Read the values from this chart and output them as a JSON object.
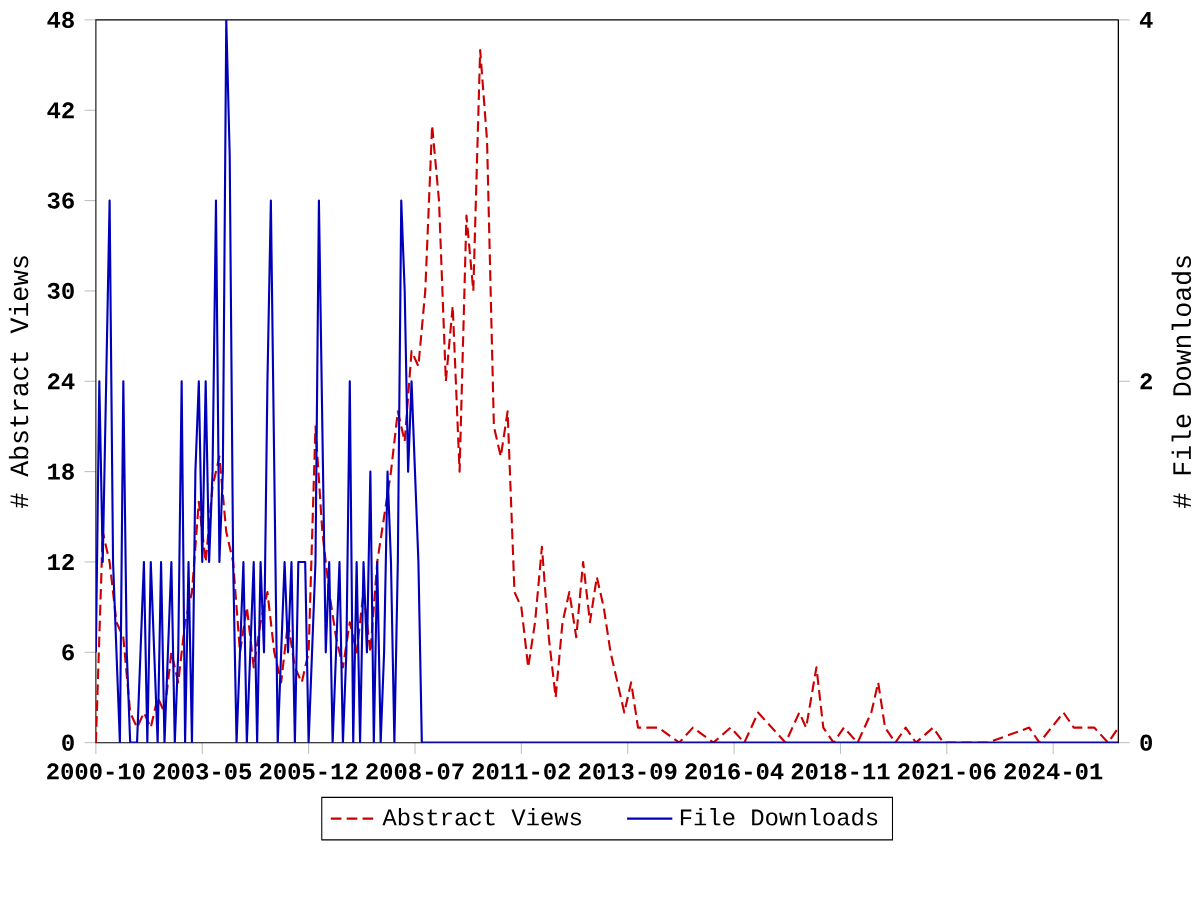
{
  "chart_data": {
    "type": "line",
    "ylabel": "# Abstract Views",
    "y2label": "# File Downloads",
    "xlim": [
      "2000-10",
      "2025-08"
    ],
    "xticks": [
      "2000-10",
      "2003-05",
      "2005-12",
      "2008-07",
      "2011-02",
      "2013-09",
      "2016-04",
      "2018-11",
      "2021-06",
      "2024-01"
    ],
    "ylim": [
      0,
      48
    ],
    "yticks": [
      0,
      6,
      12,
      18,
      24,
      30,
      36,
      42,
      48
    ],
    "y2lim": [
      0,
      4
    ],
    "y2ticks": [
      0,
      2,
      4
    ],
    "legend": "bottom",
    "series": [
      {
        "name": "Abstract Views",
        "color": "#cc0000",
        "line_style": "dashed",
        "axis": "y",
        "x": [
          "2000-10",
          "2000-12",
          "2001-02",
          "2001-04",
          "2001-06",
          "2001-08",
          "2001-10",
          "2001-12",
          "2002-02",
          "2002-04",
          "2002-06",
          "2002-08",
          "2002-10",
          "2002-12",
          "2003-02",
          "2003-04",
          "2003-06",
          "2003-08",
          "2003-10",
          "2003-12",
          "2004-02",
          "2004-04",
          "2004-06",
          "2004-08",
          "2004-10",
          "2004-12",
          "2005-02",
          "2005-04",
          "2005-06",
          "2005-08",
          "2005-10",
          "2005-12",
          "2006-02",
          "2006-04",
          "2006-06",
          "2006-08",
          "2006-10",
          "2006-12",
          "2007-02",
          "2007-04",
          "2007-06",
          "2007-08",
          "2007-10",
          "2007-12",
          "2008-02",
          "2008-04",
          "2008-06",
          "2008-08",
          "2008-10",
          "2008-12",
          "2009-02",
          "2009-04",
          "2009-06",
          "2009-08",
          "2009-10",
          "2009-12",
          "2010-02",
          "2010-04",
          "2010-06",
          "2010-08",
          "2010-10",
          "2010-12",
          "2011-02",
          "2011-04",
          "2011-06",
          "2011-08",
          "2011-10",
          "2011-12",
          "2012-02",
          "2012-04",
          "2012-06",
          "2012-08",
          "2012-10",
          "2012-12",
          "2013-02",
          "2013-04",
          "2013-06",
          "2013-08",
          "2013-10",
          "2013-12",
          "2014-06",
          "2014-12",
          "2015-04",
          "2015-10",
          "2016-03",
          "2016-07",
          "2016-11",
          "2017-03",
          "2017-07",
          "2017-11",
          "2018-01",
          "2018-04",
          "2018-06",
          "2018-09",
          "2018-12",
          "2019-04",
          "2019-08",
          "2019-10",
          "2019-12",
          "2020-03",
          "2020-06",
          "2020-09",
          "2021-02",
          "2021-05",
          "2022-06",
          "2023-06",
          "2023-09",
          "2024-04",
          "2024-07",
          "2025-01",
          "2025-05",
          "2025-08"
        ],
        "values": [
          0,
          14,
          12,
          8,
          7,
          2,
          1,
          2,
          1,
          3,
          2,
          6,
          4,
          8,
          10,
          16,
          12,
          17,
          19,
          14,
          12,
          6,
          9,
          5,
          8,
          10,
          6,
          4,
          8,
          5,
          4,
          6,
          21,
          14,
          10,
          7,
          5,
          8,
          6,
          10,
          6,
          12,
          15,
          18,
          22,
          20,
          26,
          25,
          30,
          41,
          36,
          24,
          29,
          18,
          35,
          30,
          46,
          40,
          21,
          19,
          22,
          10,
          9,
          5,
          8,
          13,
          7,
          3,
          8,
          10,
          7,
          12,
          8,
          11,
          9,
          6,
          4,
          2,
          4,
          1,
          1,
          0,
          1,
          0,
          1,
          0,
          2,
          1,
          0,
          2,
          1,
          5,
          1,
          0,
          1,
          0,
          2,
          4,
          1,
          0,
          1,
          0,
          1,
          0,
          0,
          1,
          0,
          2,
          1,
          1,
          0,
          1
        ]
      },
      {
        "name": "File Downloads",
        "color": "#0000bb",
        "line_style": "solid",
        "axis": "y2",
        "x": [
          "2000-10",
          "2000-11",
          "2000-12",
          "2001-01",
          "2001-02",
          "2001-03",
          "2001-04",
          "2001-05",
          "2001-06",
          "2001-07",
          "2001-08",
          "2001-09",
          "2001-10",
          "2001-11",
          "2001-12",
          "2002-01",
          "2002-02",
          "2002-03",
          "2002-04",
          "2002-05",
          "2002-06",
          "2002-07",
          "2002-08",
          "2002-09",
          "2002-10",
          "2002-11",
          "2002-12",
          "2003-01",
          "2003-02",
          "2003-03",
          "2003-04",
          "2003-05",
          "2003-06",
          "2003-07",
          "2003-08",
          "2003-09",
          "2003-10",
          "2003-11",
          "2003-12",
          "2004-01",
          "2004-02",
          "2004-03",
          "2004-04",
          "2004-05",
          "2004-06",
          "2004-07",
          "2004-08",
          "2004-09",
          "2004-10",
          "2004-11",
          "2004-12",
          "2005-01",
          "2005-02",
          "2005-03",
          "2005-04",
          "2005-05",
          "2005-06",
          "2005-07",
          "2005-08",
          "2005-09",
          "2005-10",
          "2005-11",
          "2005-12",
          "2006-01",
          "2006-02",
          "2006-03",
          "2006-04",
          "2006-05",
          "2006-06",
          "2006-07",
          "2006-08",
          "2006-09",
          "2006-10",
          "2006-11",
          "2006-12",
          "2007-01",
          "2007-02",
          "2007-03",
          "2007-04",
          "2007-05",
          "2007-06",
          "2007-07",
          "2007-08",
          "2007-09",
          "2007-10",
          "2007-11",
          "2007-12",
          "2008-01",
          "2008-02",
          "2008-03",
          "2008-04",
          "2008-05",
          "2008-06",
          "2008-07",
          "2008-08",
          "2008-09",
          "2008-10",
          "2025-08"
        ],
        "values": [
          0.5,
          2,
          1,
          2,
          3,
          1,
          0.5,
          0,
          2,
          0.5,
          0,
          0,
          0,
          0.5,
          1,
          0,
          1,
          0.5,
          0,
          1,
          0,
          0.5,
          1,
          0,
          0.5,
          2,
          0,
          1,
          0,
          1.5,
          2,
          1,
          2,
          1,
          1.5,
          3,
          1,
          1.5,
          4,
          3.25,
          1,
          0,
          0.5,
          1,
          0,
          0.5,
          1,
          0,
          1,
          0.5,
          2,
          3,
          1.5,
          0,
          0.5,
          1,
          0.5,
          1,
          0,
          1,
          1,
          1,
          0,
          0.5,
          1,
          3,
          1.75,
          0.5,
          1,
          0,
          0.5,
          1,
          0,
          0.5,
          2,
          0,
          1,
          0,
          1,
          0.5,
          1.5,
          0,
          1,
          0,
          0.5,
          1.5,
          1,
          0,
          1,
          3,
          2.5,
          1.5,
          2,
          1.5,
          1,
          0,
          0,
          0
        ]
      }
    ]
  }
}
